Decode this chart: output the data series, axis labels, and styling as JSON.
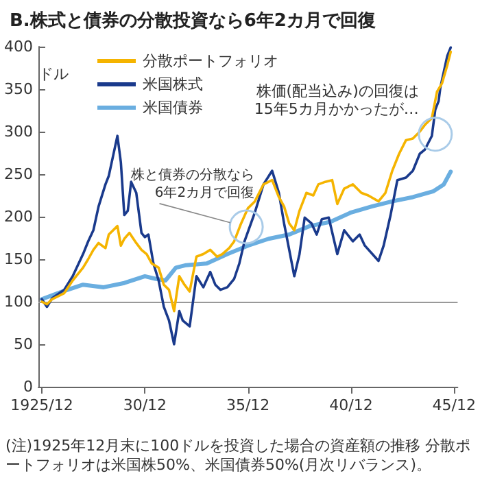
{
  "chart_data": {
    "type": "line",
    "title": "B.株式と債券の分散投資なら6年2カ月で回復",
    "ylabel": "ドル",
    "series": [
      {
        "name": "分散ポートフォリオ",
        "color": "#f5b400",
        "x": [
          "1925-12",
          "1926-03",
          "1926-06",
          "1927-01",
          "1927-06",
          "1927-12",
          "1928-03",
          "1928-06",
          "1928-09",
          "1929-01",
          "1929-03",
          "1929-08",
          "1929-10",
          "1929-12",
          "1930-03",
          "1930-07",
          "1930-10",
          "1931-01",
          "1931-04",
          "1931-08",
          "1931-11",
          "1932-02",
          "1932-05",
          "1932-08",
          "1932-11",
          "1933-02",
          "1933-06",
          "1933-10",
          "1934-02",
          "1934-06",
          "1934-09",
          "1935-01",
          "1935-04",
          "1935-08",
          "1935-12",
          "1936-04",
          "1936-09",
          "1937-02",
          "1937-06",
          "1937-09",
          "1937-12",
          "1938-03",
          "1938-06",
          "1938-10",
          "1939-02",
          "1939-05",
          "1939-09",
          "1940-01",
          "1940-04",
          "1940-08",
          "1941-01",
          "1941-06",
          "1941-10",
          "1942-04",
          "1942-08",
          "1942-12",
          "1943-04",
          "1943-08",
          "1943-12",
          "1944-04",
          "1944-07",
          "1944-11",
          "1945-02",
          "1945-05",
          "1945-08",
          "1945-10"
        ],
        "values": [
          100,
          97,
          103,
          110,
          125,
          140,
          150,
          161,
          169,
          163,
          179,
          189,
          166,
          174,
          181,
          169,
          161,
          156,
          145,
          140,
          120,
          114,
          89,
          130,
          120,
          112,
          153,
          156,
          161,
          153,
          156,
          163,
          171,
          192,
          210,
          218,
          238,
          243,
          223,
          212,
          192,
          184,
          207,
          228,
          225,
          238,
          241,
          243,
          215,
          233,
          238,
          228,
          225,
          218,
          228,
          254,
          274,
          290,
          292,
          300,
          308,
          316,
          347,
          357,
          378,
          394
        ]
      },
      {
        "name": "米国株式",
        "color": "#1a3a8c",
        "x": [
          "1925-12",
          "1926-03",
          "1926-06",
          "1927-01",
          "1927-06",
          "1927-12",
          "1928-03",
          "1928-06",
          "1928-09",
          "1929-01",
          "1929-03",
          "1929-08",
          "1929-10",
          "1929-12",
          "1930-02",
          "1930-04",
          "1930-07",
          "1930-10",
          "1930-12",
          "1931-02",
          "1931-05",
          "1931-08",
          "1931-11",
          "1932-02",
          "1932-05",
          "1932-08",
          "1932-10",
          "1933-02",
          "1933-06",
          "1933-10",
          "1934-02",
          "1934-05",
          "1934-08",
          "1934-12",
          "1935-04",
          "1935-07",
          "1935-10",
          "1936-04",
          "1936-09",
          "1937-02",
          "1937-06",
          "1937-09",
          "1937-12",
          "1938-03",
          "1938-06",
          "1938-09",
          "1939-01",
          "1939-04",
          "1939-07",
          "1939-11",
          "1940-04",
          "1940-08",
          "1941-01",
          "1941-05",
          "1941-08",
          "1942-04",
          "1942-07",
          "1942-11",
          "1943-03",
          "1943-08",
          "1943-12",
          "1944-04",
          "1944-07",
          "1944-11",
          "1945-01",
          "1945-03",
          "1945-04",
          "1945-08",
          "1945-10"
        ],
        "values": [
          103,
          94,
          104,
          114,
          130,
          156,
          171,
          184,
          212,
          238,
          248,
          295,
          264,
          202,
          207,
          241,
          228,
          181,
          176,
          179,
          145,
          125,
          94,
          78,
          50,
          89,
          78,
          71,
          130,
          117,
          135,
          120,
          114,
          117,
          127,
          145,
          171,
          205,
          238,
          254,
          228,
          192,
          161,
          130,
          156,
          199,
          192,
          179,
          197,
          199,
          156,
          184,
          171,
          179,
          166,
          148,
          166,
          202,
          243,
          246,
          254,
          274,
          279,
          295,
          326,
          336,
          352,
          389,
          399
        ]
      },
      {
        "name": "米国債券",
        "color": "#6aaee0",
        "x": [
          "1925-12",
          "1926-12",
          "1927-12",
          "1928-12",
          "1929-12",
          "1930-12",
          "1931-06",
          "1931-12",
          "1932-06",
          "1932-12",
          "1933-12",
          "1934-12",
          "1935-12",
          "1936-12",
          "1937-12",
          "1938-12",
          "1939-12",
          "1940-12",
          "1941-12",
          "1942-12",
          "1943-12",
          "1944-12",
          "1945-06",
          "1945-10"
        ],
        "values": [
          103,
          112,
          120,
          117,
          122,
          130,
          127,
          125,
          140,
          143,
          145,
          156,
          166,
          174,
          179,
          189,
          194,
          205,
          212,
          218,
          223,
          230,
          238,
          253
        ]
      }
    ],
    "xlim": [
      "1925-10",
      "1946-02"
    ],
    "xticks": [
      {
        "value": "1925-12",
        "label": "1925/12"
      },
      {
        "value": "1930-12",
        "label": "30/12"
      },
      {
        "value": "1935-12",
        "label": "35/12"
      },
      {
        "value": "1940-12",
        "label": "40/12"
      },
      {
        "value": "1945-12",
        "label": "45/12"
      }
    ],
    "ylim": [
      0,
      400
    ],
    "yticks": [
      0,
      50,
      100,
      150,
      200,
      250,
      300,
      350,
      400
    ],
    "ref_lines": [
      {
        "axis": "y",
        "value": 100,
        "color": "#999999"
      }
    ],
    "annotations": [
      {
        "text": "株価(配当込み)の回復は\n15年5カ月かかったが…",
        "x": "1945-01",
        "y": 297
      },
      {
        "text": "株と債券の分散なら\n6年2カ月で回復",
        "x": "1935-11",
        "y": 188
      },
      "(注)1925年12月末に100ドルを投資した場合の資産額の推移 分散ポートフォリオは米国株50%、米国債券50%(月次リバランス)。"
    ],
    "grid": false,
    "legend": "top left",
    "line_style": "solid",
    "marker": "none"
  }
}
